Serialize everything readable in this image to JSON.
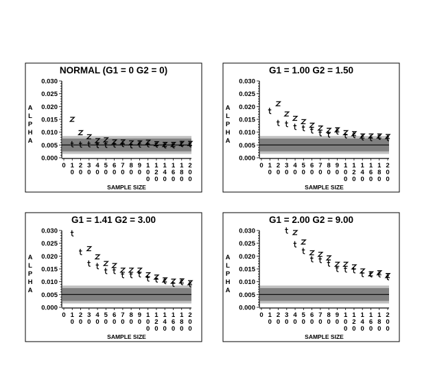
{
  "chart_data": [
    {
      "type": "scatter",
      "title": "NORMAL (G1 =  0     G2 =  0)",
      "xlabel": "SAMPLE SIZE",
      "ylabel": "ALPHA",
      "x_ticks": [
        "0",
        "10",
        "20",
        "30",
        "40",
        "50",
        "60",
        "70",
        "80",
        "90",
        "100",
        "120",
        "140",
        "160",
        "180",
        "200"
      ],
      "y_ticks": [
        "0.000",
        "0.005",
        "0.010",
        "0.015",
        "0.020",
        "0.025",
        "0.030"
      ],
      "ylim": [
        0,
        0.03
      ],
      "reference_line": 0.005,
      "bands": {
        "outer": [
          0.0015,
          0.0085
        ],
        "inner": [
          0.0025,
          0.0075
        ]
      },
      "x": [
        10,
        20,
        30,
        40,
        50,
        60,
        70,
        80,
        90,
        100,
        120,
        140,
        160,
        180,
        200
      ],
      "series": [
        {
          "name": "z",
          "values": [
            0.015,
            0.0098,
            0.0082,
            0.0067,
            0.007,
            0.0062,
            0.0062,
            0.0058,
            0.0058,
            0.0061,
            0.0055,
            0.0052,
            0.0052,
            0.0056,
            0.0056
          ]
        },
        {
          "name": "t",
          "values": [
            0.0053,
            0.0052,
            0.0053,
            0.005,
            0.0051,
            0.0052,
            0.0054,
            0.0049,
            0.0052,
            0.0053,
            0.0052,
            0.0049,
            0.0049,
            0.0054,
            0.0053
          ]
        }
      ]
    },
    {
      "type": "scatter",
      "title": "G1 =  1.00   G2 =  1.50",
      "xlabel": "SAMPLE SIZE",
      "ylabel": "ALPHA",
      "x_ticks": [
        "0",
        "10",
        "20",
        "30",
        "40",
        "50",
        "60",
        "70",
        "80",
        "90",
        "100",
        "120",
        "140",
        "160",
        "180",
        "200"
      ],
      "y_ticks": [
        "0.000",
        "0.005",
        "0.010",
        "0.015",
        "0.020",
        "0.025",
        "0.030"
      ],
      "ylim": [
        0,
        0.03
      ],
      "reference_line": 0.005,
      "bands": {
        "outer": [
          0.0015,
          0.0085
        ],
        "inner": [
          0.0025,
          0.0075
        ]
      },
      "x": [
        10,
        20,
        30,
        40,
        50,
        60,
        70,
        80,
        90,
        100,
        120,
        140,
        160,
        180,
        200
      ],
      "series": [
        {
          "name": "z",
          "values": [
            null,
            0.0211,
            0.0171,
            0.0154,
            0.0141,
            0.0127,
            0.0116,
            0.0107,
            0.0109,
            0.0098,
            0.0094,
            0.0085,
            0.0085,
            0.0085,
            0.0083
          ]
        },
        {
          "name": "t",
          "values": [
            0.0183,
            0.0136,
            0.0132,
            0.0121,
            0.0116,
            0.0107,
            0.0096,
            0.0091,
            0.0103,
            0.0088,
            0.0089,
            0.008,
            0.0077,
            0.0082,
            0.0077
          ]
        }
      ]
    },
    {
      "type": "scatter",
      "title": "G1 =  1.41   G2 =  3.00",
      "xlabel": "SAMPLE SIZE",
      "ylabel": "ALPHA",
      "x_ticks": [
        "0",
        "10",
        "20",
        "30",
        "40",
        "50",
        "60",
        "70",
        "80",
        "90",
        "100",
        "120",
        "140",
        "160",
        "180",
        "200"
      ],
      "y_ticks": [
        "0.000",
        "0.005",
        "0.010",
        "0.015",
        "0.020",
        "0.025",
        "0.030"
      ],
      "ylim": [
        0,
        0.03
      ],
      "reference_line": 0.005,
      "bands": {
        "outer": [
          0.0015,
          0.0085
        ],
        "inner": [
          0.0025,
          0.0075
        ]
      },
      "x": [
        10,
        20,
        30,
        40,
        50,
        60,
        70,
        80,
        90,
        100,
        120,
        140,
        160,
        180,
        200
      ],
      "series": [
        {
          "name": "z",
          "values": [
            null,
            null,
            0.0229,
            0.0197,
            0.0171,
            0.0163,
            0.0145,
            0.0145,
            0.0145,
            0.0127,
            0.0118,
            0.0107,
            0.0102,
            0.0103,
            0.0096
          ]
        },
        {
          "name": "t",
          "values": [
            0.0289,
            0.0216,
            0.0171,
            0.0161,
            0.0142,
            0.0142,
            0.0126,
            0.0126,
            0.0129,
            0.0113,
            0.0109,
            0.0103,
            0.0092,
            0.0099,
            0.009
          ]
        }
      ]
    },
    {
      "type": "scatter",
      "title": "G1 =  2.00   G2 =  9.00",
      "xlabel": "SAMPLE SIZE",
      "ylabel": "ALPHA",
      "x_ticks": [
        "0",
        "10",
        "20",
        "30",
        "40",
        "50",
        "60",
        "70",
        "80",
        "90",
        "100",
        "120",
        "140",
        "160",
        "180",
        "200"
      ],
      "y_ticks": [
        "0.000",
        "0.005",
        "0.010",
        "0.015",
        "0.020",
        "0.025",
        "0.030"
      ],
      "ylim": [
        0,
        0.03
      ],
      "reference_line": 0.005,
      "bands": {
        "outer": [
          0.0015,
          0.0085
        ],
        "inner": [
          0.0025,
          0.0075
        ]
      },
      "x": [
        10,
        20,
        30,
        40,
        50,
        60,
        70,
        80,
        90,
        100,
        120,
        140,
        160,
        180,
        200
      ],
      "series": [
        {
          "name": "z",
          "values": [
            null,
            null,
            null,
            0.0292,
            0.0255,
            0.0213,
            0.0207,
            0.0193,
            0.0168,
            0.0168,
            0.0158,
            0.0142,
            0.0131,
            0.0135,
            0.0124
          ]
        },
        {
          "name": "t",
          "values": [
            null,
            null,
            0.03,
            0.0246,
            0.022,
            0.0188,
            0.0185,
            0.0171,
            0.015,
            0.0148,
            0.0145,
            0.013,
            0.0129,
            0.0129,
            0.0118
          ]
        }
      ]
    }
  ],
  "colors": {
    "outer_band": "#c0c0c0",
    "inner_band": "#808080",
    "line": "#000000"
  }
}
